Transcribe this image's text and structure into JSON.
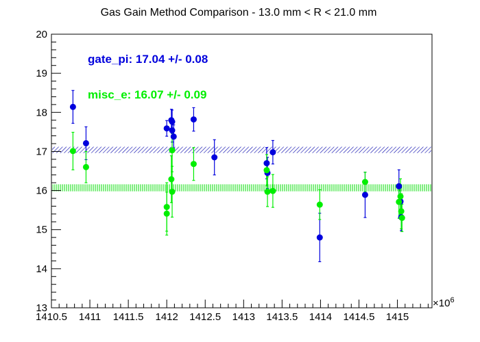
{
  "chart_data": {
    "type": "scatter",
    "title": "Gas Gain Method Comparison - 13.0 mm < R < 21.0 mm",
    "xlabel": "",
    "ylabel": "",
    "x_multiplier_label": "×10",
    "x_multiplier_exponent": "6",
    "xlim": [
      1410.5,
      1415.45
    ],
    "ylim": [
      13,
      20
    ],
    "x_ticks": [
      1410.5,
      1411,
      1411.5,
      1412,
      1412.5,
      1413,
      1413.5,
      1414,
      1414.5,
      1415
    ],
    "x_tick_labels": [
      "1410.5",
      "1411",
      "1411.5",
      "1412",
      "1412.5",
      "1413",
      "1413.5",
      "1414",
      "1414.5",
      "1415"
    ],
    "y_ticks": [
      13,
      14,
      15,
      16,
      17,
      18,
      19,
      20
    ],
    "y_tick_labels": [
      "13",
      "14",
      "15",
      "16",
      "17",
      "18",
      "19",
      "20"
    ],
    "grid": false,
    "series": [
      {
        "name": "gate_pi",
        "color": "#0000dd",
        "band": {
          "center": 17.04,
          "halfwidth": 0.08
        },
        "annotation": "gate_pi: 17.04 +/- 0.08",
        "points": [
          {
            "x": 1410.78,
            "y": 18.14,
            "err": 0.42
          },
          {
            "x": 1410.95,
            "y": 17.21,
            "err": 0.42
          },
          {
            "x": 1412.0,
            "y": 17.59,
            "err": 0.2
          },
          {
            "x": 1412.06,
            "y": 17.8,
            "err": 0.28
          },
          {
            "x": 1412.07,
            "y": 17.76,
            "err": 0.3
          },
          {
            "x": 1412.07,
            "y": 17.54,
            "err": 0.3
          },
          {
            "x": 1412.09,
            "y": 17.38,
            "err": 0.3
          },
          {
            "x": 1412.35,
            "y": 17.82,
            "err": 0.3
          },
          {
            "x": 1412.62,
            "y": 16.85,
            "err": 0.45
          },
          {
            "x": 1413.3,
            "y": 16.7,
            "err": 0.4
          },
          {
            "x": 1413.31,
            "y": 16.45,
            "err": 0.4
          },
          {
            "x": 1413.38,
            "y": 16.98,
            "err": 0.3
          },
          {
            "x": 1413.99,
            "y": 14.8,
            "err": 0.62
          },
          {
            "x": 1414.58,
            "y": 15.89,
            "err": 0.58
          },
          {
            "x": 1415.02,
            "y": 16.11,
            "err": 0.42
          },
          {
            "x": 1415.04,
            "y": 15.72,
            "err": 0.4
          },
          {
            "x": 1415.05,
            "y": 15.32,
            "err": 0.35
          }
        ]
      },
      {
        "name": "misc_e",
        "color": "#00ee00",
        "band": {
          "center": 16.07,
          "halfwidth": 0.09
        },
        "annotation": "misc_e: 16.07 +/- 0.09",
        "points": [
          {
            "x": 1410.78,
            "y": 17.01,
            "err": 0.48
          },
          {
            "x": 1410.95,
            "y": 16.6,
            "err": 0.4
          },
          {
            "x": 1412.0,
            "y": 15.58,
            "err": 0.62
          },
          {
            "x": 1412.0,
            "y": 15.41,
            "err": 0.55
          },
          {
            "x": 1412.06,
            "y": 16.29,
            "err": 0.6
          },
          {
            "x": 1412.07,
            "y": 15.97,
            "err": 0.65
          },
          {
            "x": 1412.07,
            "y": 17.03,
            "err": 0.55
          },
          {
            "x": 1412.35,
            "y": 16.68,
            "err": 0.42
          },
          {
            "x": 1413.3,
            "y": 16.52,
            "err": 0.4
          },
          {
            "x": 1413.31,
            "y": 15.97,
            "err": 0.38
          },
          {
            "x": 1413.38,
            "y": 15.99,
            "err": 0.42
          },
          {
            "x": 1413.99,
            "y": 15.64,
            "err": 0.38
          },
          {
            "x": 1414.58,
            "y": 16.22,
            "err": 0.25
          },
          {
            "x": 1415.02,
            "y": 15.71,
            "err": 0.42
          },
          {
            "x": 1415.04,
            "y": 15.85,
            "err": 0.45
          },
          {
            "x": 1415.05,
            "y": 15.47,
            "err": 0.45
          },
          {
            "x": 1415.06,
            "y": 15.3,
            "err": 0.35
          }
        ]
      }
    ]
  }
}
